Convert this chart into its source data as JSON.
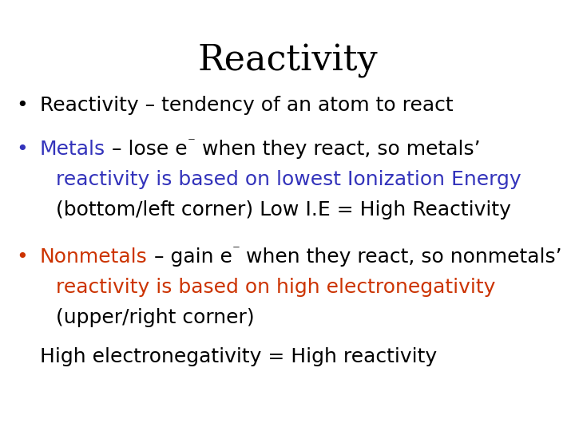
{
  "title": "Reactivity",
  "title_fontsize": 32,
  "title_color": "#000000",
  "background_color": "#ffffff",
  "body_fontsize": 18,
  "figsize": [
    7.2,
    5.4
  ],
  "dpi": 100,
  "black": "#000000",
  "blue": "#3333bb",
  "red": "#cc3300",
  "bullet1_text": "Reactivity – tendency of an atom to react",
  "metals_word": "Metals",
  "metals_mid": " – lose e",
  "metals_sup": "⁻",
  "metals_end": " when they react, so metals’",
  "metals_line2": "reactivity is based on lowest Ionization Energy",
  "metals_line3": "(bottom/left corner) Low I.E = High Reactivity",
  "nonmetals_word": "Nonmetals",
  "nonmetals_mid": " – gain e",
  "nonmetals_sup": "⁻",
  "nonmetals_end": " when they react, so nonmetals’",
  "nonmetals_line2": "reactivity is based on high electronegativity",
  "nonmetals_line3": "(upper/right corner)",
  "last_line": "High electronegativity = High reactivity"
}
